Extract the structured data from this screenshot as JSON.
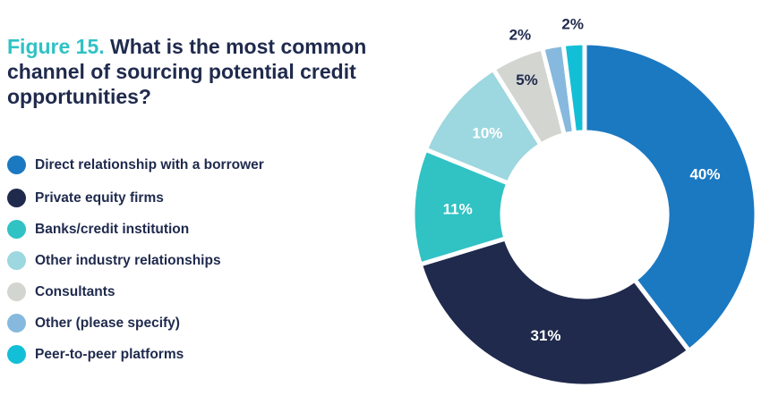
{
  "title": {
    "figure_label": "Figure 15.",
    "question": "What is the most common channel of sourcing potential credit opportunities?"
  },
  "chart_data": {
    "type": "pie",
    "donut": true,
    "categories": [
      "Direct relationship with a borrower",
      "Private equity firms",
      "Banks/credit institution",
      "Other industry relationships",
      "Consultants",
      "Other (please specify)",
      "Peer-to-peer platforms"
    ],
    "values": [
      40,
      31,
      11,
      10,
      5,
      2,
      2
    ],
    "labels": [
      "40%",
      "31%",
      "11%",
      "10%",
      "5%",
      "2%",
      "2%"
    ],
    "colors": [
      "#1b79c2",
      "#1f2a4d",
      "#31c2c4",
      "#9dd7df",
      "#d3d5d0",
      "#86b9dd",
      "#13bfd7"
    ],
    "legend_position": "left"
  }
}
